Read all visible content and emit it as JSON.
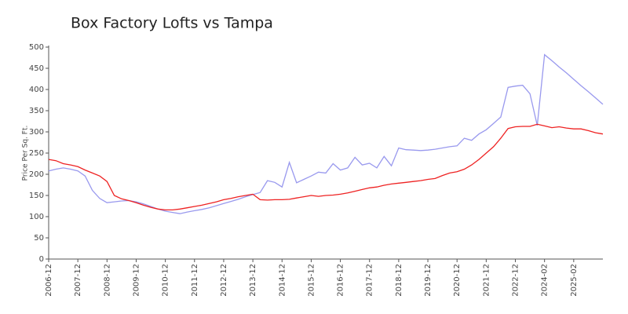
{
  "chart_data": {
    "type": "line",
    "title": "Box Factory Lofts vs Tampa",
    "y_label": "Price Per Sq. Ft.",
    "categories": [
      "2006-12",
      null,
      null,
      null,
      "2007-12",
      null,
      null,
      null,
      "2008-12",
      null,
      null,
      null,
      "2009-12",
      null,
      null,
      null,
      "2010-12",
      null,
      null,
      null,
      "2011-12",
      null,
      null,
      null,
      "2012-12",
      null,
      null,
      null,
      "2013-12",
      null,
      null,
      null,
      "2014-12",
      null,
      null,
      null,
      "2015-12",
      null,
      null,
      null,
      "2016-12",
      null,
      null,
      null,
      "2017-12",
      null,
      null,
      null,
      "2018-12",
      null,
      null,
      null,
      "2019-12",
      null,
      null,
      null,
      "2020-12",
      null,
      null,
      null,
      "2021-12",
      null,
      null,
      null,
      "2022-12",
      null,
      null,
      null,
      "2024-02",
      null,
      null,
      null,
      "2025-02",
      null,
      null,
      null,
      null
    ],
    "series": [
      {
        "color": "#9999ee",
        "values": [
          208,
          212,
          215,
          212,
          208,
          196,
          162,
          143,
          133,
          135,
          137,
          138,
          135,
          130,
          124,
          118,
          113,
          110,
          107,
          111,
          114,
          117,
          121,
          126,
          131,
          136,
          141,
          147,
          152,
          157,
          185,
          181,
          170,
          228,
          180,
          188,
          196,
          205,
          203,
          225,
          210,
          215,
          240,
          222,
          226,
          215,
          242,
          220,
          262,
          258,
          257,
          256,
          257,
          259,
          262,
          265,
          267,
          285,
          280,
          295,
          305,
          320,
          335,
          405,
          408,
          410,
          390,
          315,
          482,
          468,
          453,
          439,
          424,
          409,
          395,
          380,
          365
        ]
      },
      {
        "color": "#ee2222",
        "values": [
          235,
          232,
          225,
          222,
          218,
          210,
          203,
          196,
          183,
          150,
          142,
          138,
          133,
          127,
          122,
          118,
          116,
          116,
          118,
          121,
          124,
          127,
          131,
          135,
          140,
          143,
          147,
          150,
          153,
          140,
          139,
          140,
          140,
          141,
          144,
          147,
          150,
          148,
          150,
          151,
          153,
          156,
          160,
          164,
          168,
          170,
          174,
          177,
          179,
          181,
          183,
          185,
          188,
          190,
          197,
          203,
          206,
          212,
          222,
          235,
          250,
          265,
          285,
          308,
          312,
          313,
          313,
          318,
          314,
          310,
          312,
          309,
          307,
          307,
          303,
          298,
          295
        ]
      }
    ],
    "ylim": [
      0,
      500
    ],
    "yticks": [
      0,
      50,
      100,
      150,
      200,
      250,
      300,
      350,
      400,
      450,
      500
    ]
  }
}
